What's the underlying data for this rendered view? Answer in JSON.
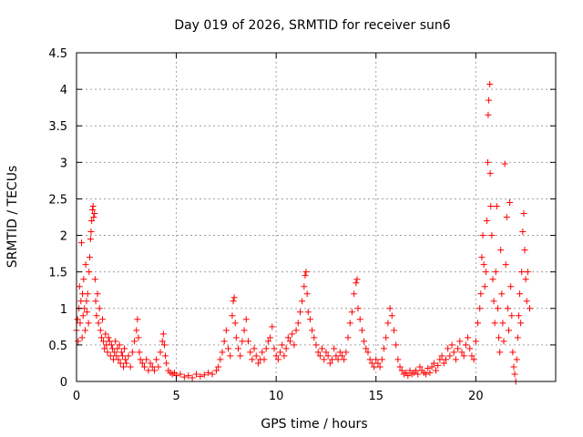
{
  "chart_data": {
    "type": "scatter",
    "title": "Day 019 of 2026, SRMTID for receiver sun6",
    "xlabel": "GPS time / hours",
    "ylabel": "SRMTID / TECUs",
    "xlim": [
      0,
      24
    ],
    "ylim": [
      0,
      4.5
    ],
    "xticks": [
      0,
      5,
      10,
      15,
      20
    ],
    "xtick_labels": [
      "0",
      "5",
      "10",
      "15",
      "20"
    ],
    "yticks": [
      0,
      0.5,
      1,
      1.5,
      2,
      2.5,
      3,
      3.5,
      4,
      4.5
    ],
    "ytick_labels": [
      "0",
      "0.5",
      "1",
      "1.5",
      "2",
      "2.5",
      "3",
      "3.5",
      "4",
      "4.5"
    ],
    "grid": true,
    "marker": "+",
    "colors": {
      "series": "#ff0000"
    },
    "series": [
      {
        "name": "SRMTID",
        "points": [
          [
            0.0,
            0.7
          ],
          [
            0.05,
            0.85
          ],
          [
            0.08,
            0.55
          ],
          [
            0.12,
            1.0
          ],
          [
            0.15,
            1.3
          ],
          [
            0.18,
            0.8
          ],
          [
            0.22,
            1.1
          ],
          [
            0.25,
            1.9
          ],
          [
            0.28,
            0.6
          ],
          [
            0.3,
            1.2
          ],
          [
            0.33,
            0.9
          ],
          [
            0.36,
            1.4
          ],
          [
            0.4,
            1.0
          ],
          [
            0.43,
            0.7
          ],
          [
            0.46,
            1.6
          ],
          [
            0.5,
            1.1
          ],
          [
            0.53,
            0.95
          ],
          [
            0.56,
            1.2
          ],
          [
            0.6,
            0.8
          ],
          [
            0.63,
            1.5
          ],
          [
            0.66,
            1.7
          ],
          [
            0.7,
            1.95
          ],
          [
            0.73,
            2.05
          ],
          [
            0.76,
            2.2
          ],
          [
            0.8,
            2.35
          ],
          [
            0.83,
            2.4
          ],
          [
            0.86,
            2.25
          ],
          [
            0.9,
            2.3
          ],
          [
            0.93,
            1.4
          ],
          [
            0.96,
            1.1
          ],
          [
            1.0,
            0.9
          ],
          [
            1.05,
            1.2
          ],
          [
            1.1,
            0.8
          ],
          [
            1.15,
            1.0
          ],
          [
            1.2,
            0.7
          ],
          [
            1.25,
            0.6
          ],
          [
            1.3,
            0.85
          ],
          [
            1.35,
            0.55
          ],
          [
            1.4,
            0.45
          ],
          [
            1.45,
            0.65
          ],
          [
            1.5,
            0.5
          ],
          [
            1.55,
            0.4
          ],
          [
            1.6,
            0.6
          ],
          [
            1.65,
            0.55
          ],
          [
            1.7,
            0.35
          ],
          [
            1.75,
            0.5
          ],
          [
            1.8,
            0.45
          ],
          [
            1.85,
            0.3
          ],
          [
            1.9,
            0.4
          ],
          [
            1.95,
            0.55
          ],
          [
            2.0,
            0.35
          ],
          [
            2.05,
            0.45
          ],
          [
            2.1,
            0.3
          ],
          [
            2.15,
            0.5
          ],
          [
            2.2,
            0.25
          ],
          [
            2.25,
            0.4
          ],
          [
            2.3,
            0.35
          ],
          [
            2.35,
            0.2
          ],
          [
            2.4,
            0.45
          ],
          [
            2.45,
            0.3
          ],
          [
            2.5,
            0.25
          ],
          [
            2.6,
            0.35
          ],
          [
            2.7,
            0.2
          ],
          [
            2.8,
            0.4
          ],
          [
            2.9,
            0.55
          ],
          [
            3.0,
            0.7
          ],
          [
            3.05,
            0.85
          ],
          [
            3.1,
            0.6
          ],
          [
            3.15,
            0.4
          ],
          [
            3.2,
            0.3
          ],
          [
            3.3,
            0.25
          ],
          [
            3.4,
            0.2
          ],
          [
            3.5,
            0.3
          ],
          [
            3.6,
            0.15
          ],
          [
            3.7,
            0.25
          ],
          [
            3.8,
            0.2
          ],
          [
            3.9,
            0.15
          ],
          [
            4.0,
            0.3
          ],
          [
            4.1,
            0.2
          ],
          [
            4.2,
            0.4
          ],
          [
            4.3,
            0.55
          ],
          [
            4.35,
            0.65
          ],
          [
            4.4,
            0.5
          ],
          [
            4.45,
            0.35
          ],
          [
            4.5,
            0.25
          ],
          [
            4.6,
            0.15
          ],
          [
            4.7,
            0.12
          ],
          [
            4.8,
            0.1
          ],
          [
            4.9,
            0.12
          ],
          [
            5.0,
            0.08
          ],
          [
            5.2,
            0.1
          ],
          [
            5.4,
            0.06
          ],
          [
            5.6,
            0.08
          ],
          [
            5.8,
            0.05
          ],
          [
            6.0,
            0.1
          ],
          [
            6.2,
            0.07
          ],
          [
            6.4,
            0.09
          ],
          [
            6.6,
            0.12
          ],
          [
            6.8,
            0.1
          ],
          [
            7.0,
            0.15
          ],
          [
            7.1,
            0.2
          ],
          [
            7.2,
            0.3
          ],
          [
            7.3,
            0.4
          ],
          [
            7.4,
            0.55
          ],
          [
            7.5,
            0.7
          ],
          [
            7.6,
            0.45
          ],
          [
            7.7,
            0.35
          ],
          [
            7.8,
            0.9
          ],
          [
            7.85,
            1.1
          ],
          [
            7.9,
            1.15
          ],
          [
            7.95,
            0.8
          ],
          [
            8.0,
            0.6
          ],
          [
            8.1,
            0.45
          ],
          [
            8.2,
            0.35
          ],
          [
            8.3,
            0.55
          ],
          [
            8.4,
            0.7
          ],
          [
            8.5,
            0.85
          ],
          [
            8.6,
            0.55
          ],
          [
            8.7,
            0.4
          ],
          [
            8.8,
            0.3
          ],
          [
            8.9,
            0.45
          ],
          [
            9.0,
            0.35
          ],
          [
            9.1,
            0.25
          ],
          [
            9.2,
            0.3
          ],
          [
            9.3,
            0.4
          ],
          [
            9.4,
            0.3
          ],
          [
            9.5,
            0.45
          ],
          [
            9.6,
            0.55
          ],
          [
            9.7,
            0.6
          ],
          [
            9.8,
            0.75
          ],
          [
            9.9,
            0.45
          ],
          [
            10.0,
            0.35
          ],
          [
            10.1,
            0.3
          ],
          [
            10.2,
            0.4
          ],
          [
            10.3,
            0.5
          ],
          [
            10.4,
            0.35
          ],
          [
            10.5,
            0.45
          ],
          [
            10.6,
            0.6
          ],
          [
            10.7,
            0.55
          ],
          [
            10.8,
            0.65
          ],
          [
            10.9,
            0.5
          ],
          [
            11.0,
            0.7
          ],
          [
            11.1,
            0.8
          ],
          [
            11.2,
            0.95
          ],
          [
            11.3,
            1.1
          ],
          [
            11.4,
            1.3
          ],
          [
            11.45,
            1.45
          ],
          [
            11.5,
            1.5
          ],
          [
            11.55,
            1.2
          ],
          [
            11.6,
            0.95
          ],
          [
            11.7,
            0.85
          ],
          [
            11.8,
            0.7
          ],
          [
            11.9,
            0.6
          ],
          [
            12.0,
            0.5
          ],
          [
            12.1,
            0.4
          ],
          [
            12.2,
            0.35
          ],
          [
            12.3,
            0.45
          ],
          [
            12.4,
            0.3
          ],
          [
            12.5,
            0.4
          ],
          [
            12.6,
            0.35
          ],
          [
            12.7,
            0.25
          ],
          [
            12.8,
            0.3
          ],
          [
            12.9,
            0.45
          ],
          [
            13.0,
            0.35
          ],
          [
            13.1,
            0.3
          ],
          [
            13.2,
            0.4
          ],
          [
            13.3,
            0.35
          ],
          [
            13.4,
            0.3
          ],
          [
            13.5,
            0.4
          ],
          [
            13.6,
            0.6
          ],
          [
            13.7,
            0.8
          ],
          [
            13.8,
            0.95
          ],
          [
            13.9,
            1.2
          ],
          [
            14.0,
            1.35
          ],
          [
            14.05,
            1.4
          ],
          [
            14.1,
            1.0
          ],
          [
            14.2,
            0.85
          ],
          [
            14.3,
            0.7
          ],
          [
            14.4,
            0.55
          ],
          [
            14.5,
            0.45
          ],
          [
            14.6,
            0.4
          ],
          [
            14.7,
            0.3
          ],
          [
            14.8,
            0.25
          ],
          [
            14.9,
            0.2
          ],
          [
            15.0,
            0.3
          ],
          [
            15.1,
            0.25
          ],
          [
            15.2,
            0.2
          ],
          [
            15.3,
            0.3
          ],
          [
            15.4,
            0.45
          ],
          [
            15.5,
            0.6
          ],
          [
            15.6,
            0.8
          ],
          [
            15.7,
            1.0
          ],
          [
            15.8,
            0.9
          ],
          [
            15.9,
            0.7
          ],
          [
            16.0,
            0.5
          ],
          [
            16.1,
            0.3
          ],
          [
            16.2,
            0.2
          ],
          [
            16.3,
            0.15
          ],
          [
            16.4,
            0.1
          ],
          [
            16.5,
            0.12
          ],
          [
            16.6,
            0.08
          ],
          [
            16.7,
            0.15
          ],
          [
            16.8,
            0.1
          ],
          [
            16.9,
            0.12
          ],
          [
            17.0,
            0.15
          ],
          [
            17.1,
            0.1
          ],
          [
            17.2,
            0.2
          ],
          [
            17.3,
            0.15
          ],
          [
            17.4,
            0.12
          ],
          [
            17.5,
            0.1
          ],
          [
            17.6,
            0.18
          ],
          [
            17.7,
            0.12
          ],
          [
            17.8,
            0.2
          ],
          [
            17.9,
            0.25
          ],
          [
            18.0,
            0.15
          ],
          [
            18.1,
            0.22
          ],
          [
            18.2,
            0.3
          ],
          [
            18.3,
            0.35
          ],
          [
            18.4,
            0.25
          ],
          [
            18.5,
            0.3
          ],
          [
            18.6,
            0.45
          ],
          [
            18.7,
            0.35
          ],
          [
            18.8,
            0.5
          ],
          [
            18.9,
            0.4
          ],
          [
            19.0,
            0.3
          ],
          [
            19.1,
            0.45
          ],
          [
            19.2,
            0.55
          ],
          [
            19.3,
            0.4
          ],
          [
            19.4,
            0.35
          ],
          [
            19.5,
            0.5
          ],
          [
            19.6,
            0.6
          ],
          [
            19.7,
            0.45
          ],
          [
            19.8,
            0.35
          ],
          [
            19.9,
            0.3
          ],
          [
            20.0,
            0.55
          ],
          [
            20.1,
            0.8
          ],
          [
            20.2,
            1.0
          ],
          [
            20.25,
            1.2
          ],
          [
            20.3,
            1.7
          ],
          [
            20.35,
            2.0
          ],
          [
            20.4,
            1.6
          ],
          [
            20.45,
            1.3
          ],
          [
            20.5,
            1.5
          ],
          [
            20.55,
            2.2
          ],
          [
            20.6,
            3.0
          ],
          [
            20.62,
            3.65
          ],
          [
            20.65,
            3.85
          ],
          [
            20.7,
            4.07
          ],
          [
            20.72,
            2.85
          ],
          [
            20.75,
            2.4
          ],
          [
            20.8,
            2.0
          ],
          [
            20.85,
            1.4
          ],
          [
            20.9,
            1.1
          ],
          [
            20.95,
            0.8
          ],
          [
            21.0,
            1.5
          ],
          [
            21.05,
            2.4
          ],
          [
            21.1,
            1.0
          ],
          [
            21.15,
            0.6
          ],
          [
            21.2,
            0.4
          ],
          [
            21.25,
            1.8
          ],
          [
            21.3,
            1.2
          ],
          [
            21.35,
            0.8
          ],
          [
            21.4,
            0.55
          ],
          [
            21.45,
            2.98
          ],
          [
            21.5,
            1.6
          ],
          [
            21.55,
            2.25
          ],
          [
            21.6,
            1.0
          ],
          [
            21.65,
            0.7
          ],
          [
            21.7,
            2.45
          ],
          [
            21.75,
            1.3
          ],
          [
            21.8,
            0.9
          ],
          [
            21.85,
            0.4
          ],
          [
            21.9,
            0.2
          ],
          [
            21.95,
            0.1
          ],
          [
            22.0,
            0.0
          ],
          [
            22.05,
            0.3
          ],
          [
            22.1,
            0.6
          ],
          [
            22.15,
            0.9
          ],
          [
            22.2,
            1.2
          ],
          [
            22.25,
            0.8
          ],
          [
            22.3,
            1.5
          ],
          [
            22.35,
            2.05
          ],
          [
            22.4,
            2.3
          ],
          [
            22.45,
            1.8
          ],
          [
            22.5,
            1.4
          ],
          [
            22.55,
            1.1
          ],
          [
            22.6,
            1.5
          ],
          [
            22.7,
            1.0
          ]
        ]
      }
    ]
  }
}
